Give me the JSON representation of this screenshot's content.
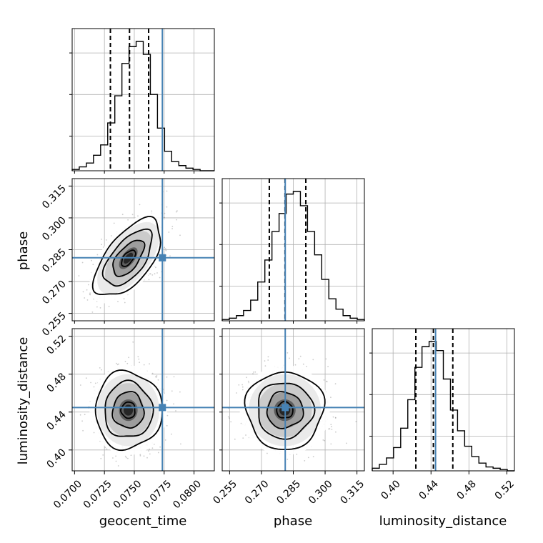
{
  "chart_data": {
    "type": "corner",
    "parameters": [
      "geocent_time",
      "phase",
      "luminosity_distance"
    ],
    "ranges": {
      "geocent_time": [
        0.0698,
        0.0817
      ],
      "phase": [
        0.2515,
        0.3185
      ],
      "luminosity_distance": [
        0.378,
        0.528
      ]
    },
    "ticks": {
      "geocent_time": [
        "0.0700",
        "0.0725",
        "0.0750",
        "0.0775",
        "0.0800"
      ],
      "phase": [
        "0.255",
        "0.270",
        "0.285",
        "0.300",
        "0.315"
      ],
      "luminosity_distance": [
        "0.40",
        "0.44",
        "0.48",
        "0.52"
      ]
    },
    "truths": {
      "geocent_time": 0.07735,
      "phase": 0.2812,
      "luminosity_distance": 0.4448
    },
    "quantiles": {
      "geocent_time": [
        0.073,
        0.0746,
        0.0762
      ],
      "phase": [
        0.2737,
        0.2811,
        0.2909
      ],
      "luminosity_distance": [
        0.424,
        0.4425,
        0.463
      ]
    },
    "histograms": {
      "geocent_time": {
        "range": [
          0.0698,
          0.0817
        ],
        "counts": [
          0.01,
          0.03,
          0.06,
          0.12,
          0.2,
          0.37,
          0.58,
          0.83,
          0.96,
          1.0,
          0.9,
          0.59,
          0.33,
          0.15,
          0.07,
          0.04,
          0.02,
          0.01,
          0.0,
          0.0
        ]
      },
      "phase": {
        "range": [
          0.2515,
          0.3185
        ],
        "counts": [
          0.01,
          0.02,
          0.04,
          0.08,
          0.16,
          0.3,
          0.47,
          0.69,
          0.83,
          0.98,
          1.0,
          0.89,
          0.69,
          0.51,
          0.32,
          0.17,
          0.09,
          0.04,
          0.02,
          0.01
        ]
      },
      "luminosity_distance": {
        "range": [
          0.378,
          0.528
        ],
        "counts": [
          0.02,
          0.05,
          0.1,
          0.18,
          0.33,
          0.55,
          0.8,
          0.96,
          1.0,
          0.93,
          0.71,
          0.47,
          0.31,
          0.19,
          0.11,
          0.06,
          0.03,
          0.02,
          0.01,
          0.0
        ]
      }
    },
    "posterior_2d": {
      "phase_vs_geocent_time": {
        "center": [
          0.0745,
          0.281
        ],
        "sigma": [
          0.0013,
          0.0085
        ],
        "rho": 0.6
      },
      "luminosity_distance_vs_geocent_time": {
        "center": [
          0.0745,
          0.442
        ],
        "sigma": [
          0.0013,
          0.019
        ],
        "rho": 0.0
      },
      "luminosity_distance_vs_phase": {
        "center": [
          0.281,
          0.442
        ],
        "sigma": [
          0.0085,
          0.019
        ],
        "rho": 0.0
      }
    },
    "grid": true,
    "truth_color": "#4682b4",
    "quantile_line_style": "dashed"
  }
}
